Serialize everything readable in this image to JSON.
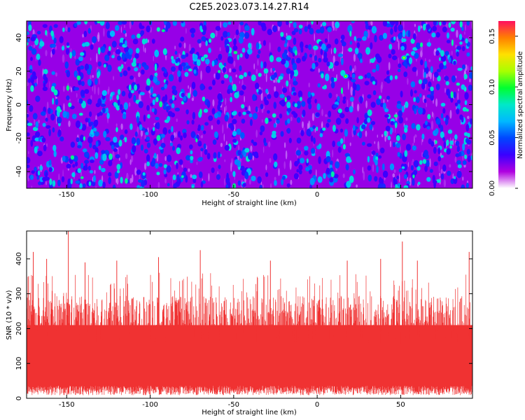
{
  "figure": {
    "title": "C2E5.2023.073.14.27.R14"
  },
  "chart_data": [
    {
      "type": "heatmap",
      "xlabel": "Height of straight line (km)",
      "ylabel": "Frequency (Hz)",
      "xlim": [
        -174,
        93
      ],
      "ylim": [
        -50,
        50
      ],
      "xticks": [
        -150,
        -100,
        -50,
        0,
        50
      ],
      "yticks": [
        -40,
        -20,
        0,
        20,
        40
      ],
      "grid": false,
      "colorbar": {
        "label": "Normalized spectral amplitude",
        "range": [
          0,
          0.165
        ],
        "ticks": [
          "0.00",
          "0.05",
          "0.10",
          "0.15"
        ],
        "colormap": [
          "#ffffff",
          "#b000e0",
          "#3a00ff",
          "#0046ff",
          "#00b8ff",
          "#00e8c8",
          "#00ff30",
          "#a8ff00",
          "#ffe000",
          "#ff8000",
          "#ff1060"
        ]
      },
      "background_level": 0.02,
      "notable_peaks": [
        {
          "x": 52,
          "y": 28,
          "amplitude": 0.12
        },
        {
          "x": 17,
          "y": 17,
          "amplitude": 0.115
        },
        {
          "x": -1,
          "y": 34,
          "amplitude": 0.09
        },
        {
          "x": -17,
          "y": 40,
          "amplitude": 0.08
        },
        {
          "x": -23,
          "y": 27,
          "amplitude": 0.075
        }
      ]
    },
    {
      "type": "line",
      "xlabel": "Height of straight line (km)",
      "ylabel": "SNR (10 * v/v)",
      "xlim": [
        -174,
        93
      ],
      "ylim": [
        0,
        480
      ],
      "xticks": [
        -150,
        -100,
        -50,
        0,
        50
      ],
      "yticks": [
        0,
        100,
        200,
        300,
        400
      ],
      "grid": false,
      "color": "#f03232",
      "typical_range": [
        30,
        280
      ],
      "notable_peaks": [
        {
          "x": -149,
          "y": 480
        },
        {
          "x": 51,
          "y": 450
        },
        {
          "x": -70,
          "y": 425
        },
        {
          "x": -170,
          "y": 420
        },
        {
          "x": 91,
          "y": 420
        },
        {
          "x": -162,
          "y": 400
        },
        {
          "x": -139,
          "y": 390
        },
        {
          "x": -120,
          "y": 395
        },
        {
          "x": -95,
          "y": 405
        },
        {
          "x": -28,
          "y": 395
        },
        {
          "x": 18,
          "y": 395
        },
        {
          "x": 38,
          "y": 400
        },
        {
          "x": 60,
          "y": 395
        }
      ]
    }
  ]
}
